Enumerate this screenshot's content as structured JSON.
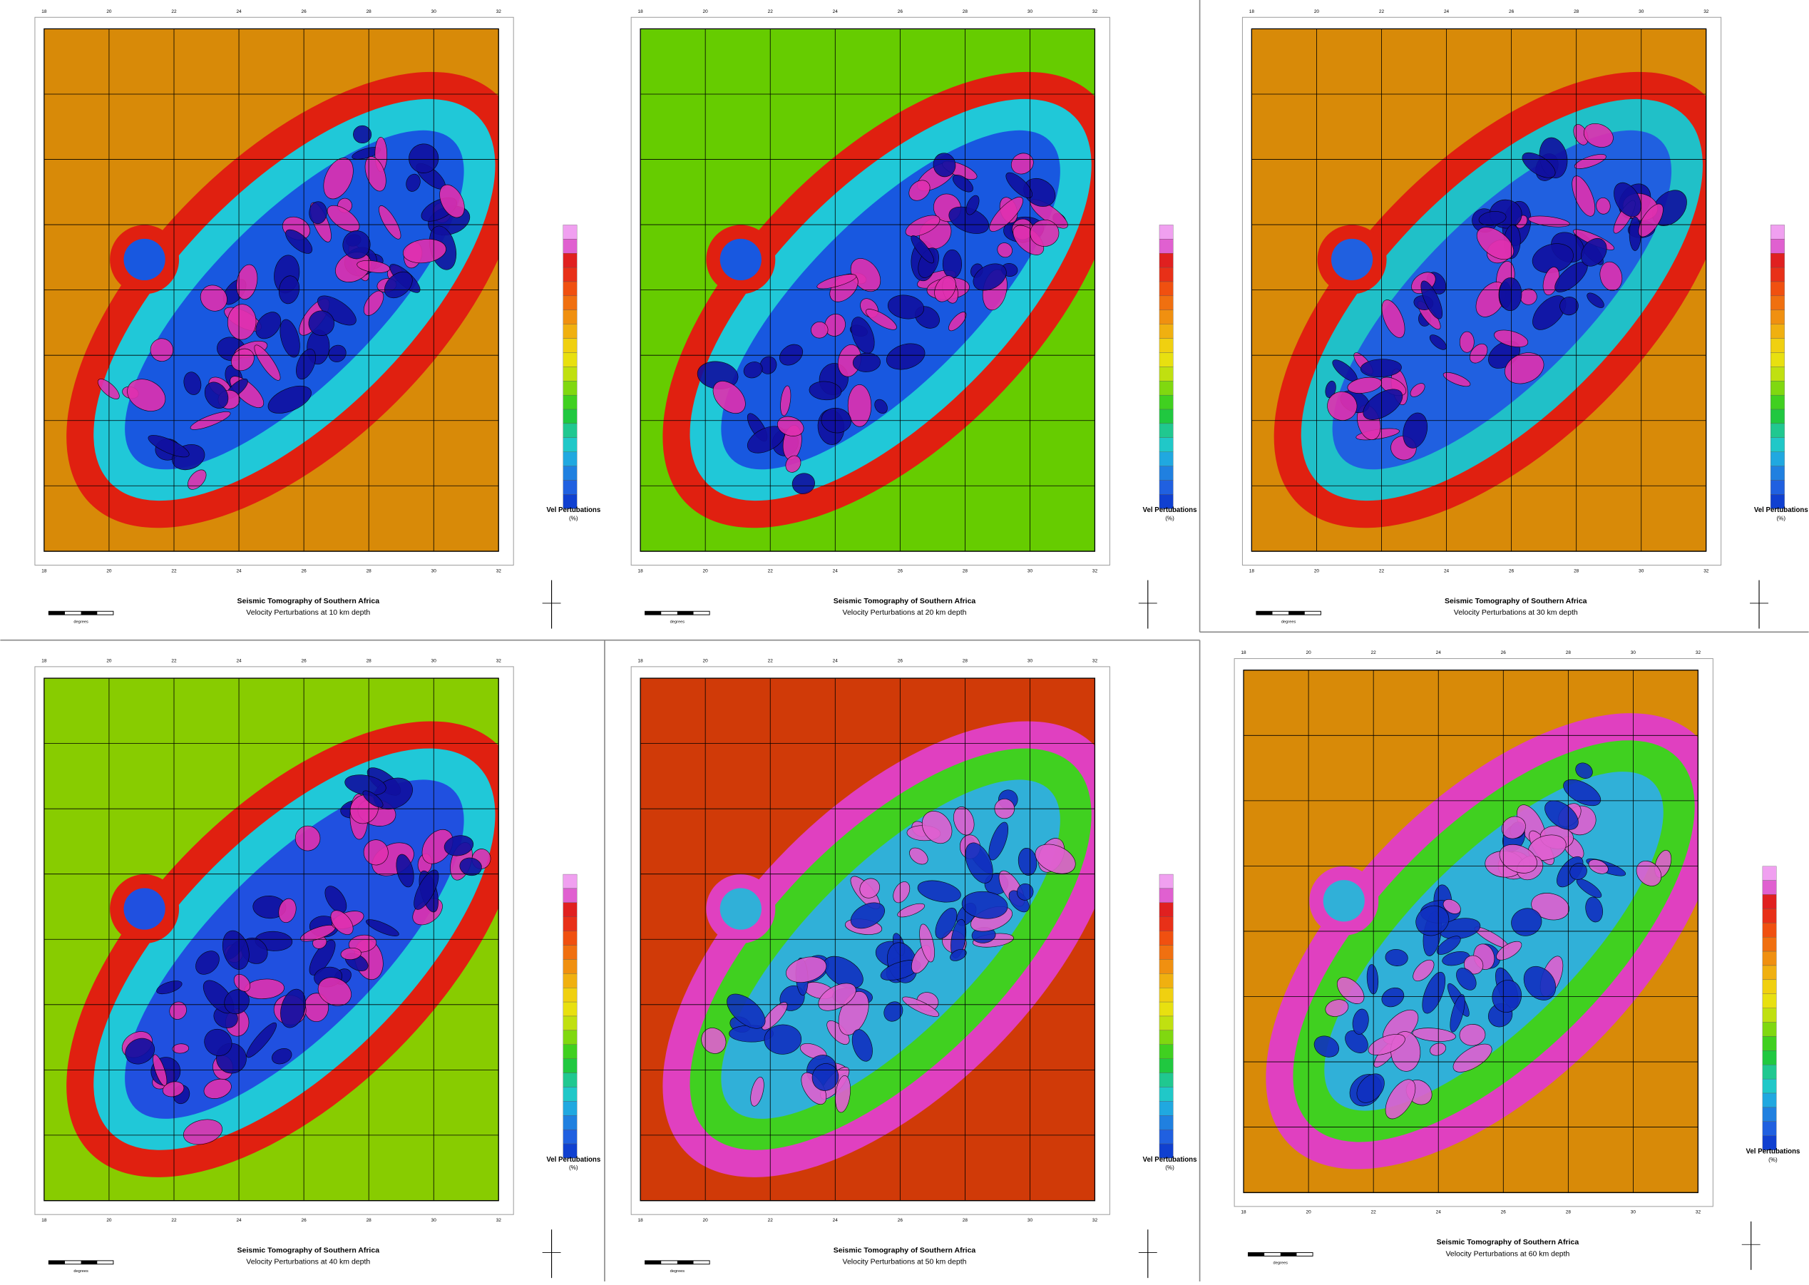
{
  "panels": [
    {
      "title": "Seismic Tomography of Southern Africa",
      "subtitle": "Velocity Perturbations at 10 km depth",
      "legend_title": "Vel Pertubations",
      "legend_unit": "(%)",
      "scale_label": "degrees",
      "xticks": [
        "18",
        "20",
        "22",
        "24",
        "26",
        "28",
        "30",
        "32"
      ]
    },
    {
      "title": "Seismic Tomography of Southern Africa",
      "subtitle": "Velocity Perturbations at 20 km depth",
      "legend_title": "Vel Pertubations",
      "legend_unit": "(%)",
      "scale_label": "degrees",
      "xticks": [
        "18",
        "20",
        "22",
        "24",
        "26",
        "28",
        "30",
        "32"
      ]
    },
    {
      "title": "Seismic Tomography of Southern Africa",
      "subtitle": "Velocity Perturbations at 30 km depth",
      "legend_title": "Vel Pertubations",
      "legend_unit": "(%)",
      "scale_label": "degrees",
      "xticks": [
        "18",
        "20",
        "22",
        "24",
        "26",
        "28",
        "30",
        "32"
      ]
    },
    {
      "title": "Seismic Tomography of Southern Africa",
      "subtitle": "Velocity Perturbations at 40 km depth",
      "legend_title": "Vel Pertubations",
      "legend_unit": "(%)",
      "scale_label": "degrees",
      "xticks": [
        "18",
        "20",
        "22",
        "24",
        "26",
        "28",
        "30",
        "32"
      ]
    },
    {
      "title": "Seismic Tomography of Southern Africa",
      "subtitle": "Velocity Perturbations at 50 km depth",
      "legend_title": "Vel Pertubations",
      "legend_unit": "(%)",
      "scale_label": "degrees",
      "xticks": [
        "18",
        "20",
        "22",
        "24",
        "26",
        "28",
        "30",
        "32"
      ]
    },
    {
      "title": "Seismic Tomography of Southern Africa",
      "subtitle": "Velocity Perturbations at 60 km depth",
      "legend_title": "Vel Pertubations",
      "legend_unit": "(%)",
      "scale_label": "degrees",
      "xticks": [
        "18",
        "20",
        "22",
        "24",
        "26",
        "28",
        "30",
        "32"
      ]
    }
  ]
}
